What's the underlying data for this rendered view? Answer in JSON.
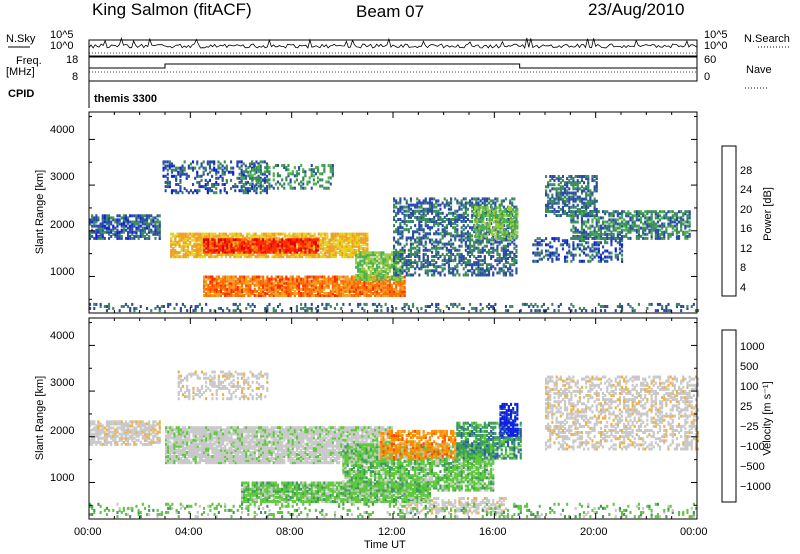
{
  "header": {
    "station": "King Salmon (fitACF)",
    "beam": "Beam 07",
    "date": "23/Aug/2010"
  },
  "params": {
    "nsky_label": "N.Sky",
    "nsearch_label": "N.Search",
    "noise_ticks": [
      "10^5",
      "10^0"
    ],
    "freq_label_line1": "Freq.",
    "freq_label_line2": "[MHz]",
    "freq_ticks": [
      "18",
      "8"
    ],
    "nave_ticks": [
      "60",
      "0"
    ],
    "nave_label": "Nave",
    "cpid_label": "CPID",
    "cpid_name": "themis 3300"
  },
  "colors": {
    "power": [
      "#0a1ee6",
      "#2a4aa8",
      "#3a8a5a",
      "#4caf50",
      "#9ccc3a",
      "#e6d21e",
      "#f0a020",
      "#ff6a00",
      "#ff2a00",
      "#e60000"
    ],
    "velocity": [
      "#e60000",
      "#ff4a00",
      "#ff8c00",
      "#f0b040",
      "#c8c8c8",
      "#c8c8c8",
      "#5cc83a",
      "#3a9a5a",
      "#2a5aa8",
      "#0a1ee6"
    ],
    "frame": "#000000"
  },
  "chart_data": [
    {
      "type": "heatmap",
      "name": "power",
      "xlabel": "",
      "ylabel": "Slant Range [km]",
      "yticks": [
        "1000",
        "2000",
        "3000",
        "4000"
      ],
      "ylim": [
        200,
        4600
      ],
      "colorbar_label": "Power [dB]",
      "colorbar_ticks": [
        "4",
        "8",
        "12",
        "16",
        "20",
        "24",
        "28"
      ],
      "colorbar_range": [
        0,
        30
      ],
      "regions": [
        {
          "t0": 0.0,
          "t1": 2.8,
          "r0": 1800,
          "r1": 2300,
          "v": 5,
          "density": 0.7
        },
        {
          "t0": 2.9,
          "t1": 7.0,
          "r0": 2800,
          "r1": 3500,
          "v": 5,
          "density": 0.35
        },
        {
          "t0": 6.0,
          "t1": 9.6,
          "r0": 2900,
          "r1": 3400,
          "v": 8,
          "density": 0.35
        },
        {
          "t0": 3.2,
          "t1": 11.0,
          "r0": 1400,
          "r1": 1900,
          "v": 18,
          "density": 0.85
        },
        {
          "t0": 4.5,
          "t1": 9.0,
          "r0": 1500,
          "r1": 1800,
          "v": 26,
          "density": 0.85
        },
        {
          "t0": 4.5,
          "t1": 12.5,
          "r0": 550,
          "r1": 1000,
          "v": 22,
          "density": 0.85
        },
        {
          "t0": 10.5,
          "t1": 12.4,
          "r0": 900,
          "r1": 1500,
          "v": 12,
          "density": 0.7
        },
        {
          "t0": 12.0,
          "t1": 16.9,
          "r0": 1000,
          "r1": 2700,
          "v": 6,
          "density": 0.5
        },
        {
          "t0": 15.2,
          "t1": 16.9,
          "r0": 1800,
          "r1": 2500,
          "v": 12,
          "density": 0.6
        },
        {
          "t0": 18.0,
          "t1": 20.0,
          "r0": 2300,
          "r1": 3200,
          "v": 6,
          "density": 0.55
        },
        {
          "t0": 19.0,
          "t1": 23.7,
          "r0": 1800,
          "r1": 2400,
          "v": 7,
          "density": 0.6
        },
        {
          "t0": 17.5,
          "t1": 21.0,
          "r0": 1300,
          "r1": 1800,
          "v": 5,
          "density": 0.35
        },
        {
          "t0": 0.0,
          "t1": 24.0,
          "r0": 220,
          "r1": 400,
          "v": 6,
          "density": 0.25
        }
      ]
    },
    {
      "type": "heatmap",
      "name": "velocity",
      "xlabel": "Time UT",
      "xticks": [
        "00:00",
        "04:00",
        "08:00",
        "12:00",
        "16:00",
        "20:00",
        "00:00"
      ],
      "xlim": [
        0,
        24
      ],
      "ylabel": "Slant Range [km]",
      "yticks": [
        "1000",
        "2000",
        "3000",
        "4000"
      ],
      "ylim": [
        200,
        4600
      ],
      "colorbar_label": "Velocity [m s⁻¹]",
      "colorbar_ticks": [
        "1000",
        "500",
        "100",
        "25",
        "−25",
        "−100",
        "−500",
        "−1000"
      ],
      "regions": [
        {
          "t0": 0.0,
          "t1": 2.8,
          "r0": 1800,
          "r1": 2300,
          "v": 4,
          "density": 0.7
        },
        {
          "t0": 3.0,
          "t1": 12.0,
          "r0": 1400,
          "r1": 2200,
          "v": 5,
          "density": 0.85
        },
        {
          "t0": 3.5,
          "t1": 7.0,
          "r0": 2800,
          "r1": 3400,
          "v": 4,
          "density": 0.35
        },
        {
          "t0": 6.0,
          "t1": 13.5,
          "r0": 550,
          "r1": 1000,
          "v": 6,
          "density": 0.85
        },
        {
          "t0": 10.0,
          "t1": 16.0,
          "r0": 800,
          "r1": 1800,
          "v": 6,
          "density": 0.75
        },
        {
          "t0": 11.5,
          "t1": 14.5,
          "r0": 1500,
          "r1": 2100,
          "v": 2,
          "density": 0.55
        },
        {
          "t0": 14.5,
          "t1": 17.0,
          "r0": 1500,
          "r1": 2300,
          "v": 7,
          "density": 0.6
        },
        {
          "t0": 16.2,
          "t1": 16.9,
          "r0": 2000,
          "r1": 2700,
          "v": 9,
          "density": 0.7
        },
        {
          "t0": 18.0,
          "t1": 24.0,
          "r0": 1700,
          "r1": 3300,
          "v": 4,
          "density": 0.45
        },
        {
          "t0": 12.5,
          "t1": 16.5,
          "r0": 300,
          "r1": 650,
          "v": 4,
          "density": 0.5
        },
        {
          "t0": 0.0,
          "t1": 24.0,
          "r0": 220,
          "r1": 500,
          "v": 6,
          "density": 0.2
        }
      ]
    }
  ]
}
